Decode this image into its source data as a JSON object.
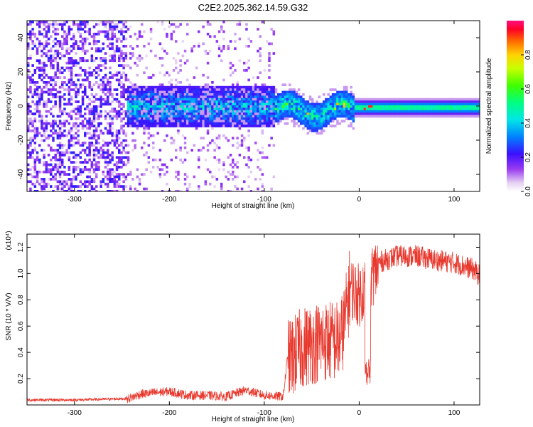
{
  "title": "C2E2.2025.362.14.59.G32",
  "chart_data": [
    {
      "type": "heatmap",
      "name": "spectrogram",
      "xlabel": "Height of straight line (km)",
      "ylabel": "Frequency (Hz)",
      "xlim": [
        -350,
        127
      ],
      "ylim": [
        -50,
        50
      ],
      "xticks": [
        -300,
        -200,
        -100,
        0,
        100
      ],
      "yticks": [
        -40,
        -20,
        0,
        20,
        40
      ],
      "colorbar": {
        "label": "Normalized spectral amplitude",
        "range": [
          0,
          1
        ],
        "ticks": [
          "0.0",
          "0.2",
          "0.4",
          "0.6",
          "0.8"
        ],
        "colormap": "rainbow (white-purple-blue-cyan-green-yellow-red-magenta)"
      },
      "regions": [
        {
          "x": [
            -350,
            -245
          ],
          "freq_half_width": 50,
          "amplitude": 0.1,
          "description": "broadband sparse noise"
        },
        {
          "x": [
            -245,
            -90
          ],
          "freq_half_width": 12,
          "amplitude": 0.25,
          "description": "dense band with scattered noise"
        },
        {
          "x": [
            -90,
            -5
          ],
          "freq_half_width": 8,
          "amplitude": 0.4,
          "description": "wavy band with hot spots"
        },
        {
          "x": [
            -5,
            127
          ],
          "freq_half_width": 4,
          "amplitude": 0.5,
          "description": "narrow steady band"
        }
      ]
    },
    {
      "type": "line",
      "name": "snr",
      "xlabel": "Height of straight line (km)",
      "ylabel": "SNR (10 * V/V)",
      "y_exponent": "(x10⁴)",
      "xlim": [
        -350,
        127
      ],
      "ylim": [
        0,
        1.3
      ],
      "xticks": [
        -300,
        -200,
        -100,
        0,
        100
      ],
      "yticks": [
        "0.2",
        "0.4",
        "0.6",
        "0.8",
        "1.0",
        "1.2"
      ],
      "color": "#e8392e",
      "x": [
        -350,
        -300,
        -245,
        -230,
        -200,
        -180,
        -160,
        -140,
        -120,
        -100,
        -80,
        -75,
        -60,
        -40,
        -20,
        -15,
        -10,
        0,
        10,
        20,
        40,
        60,
        80,
        100,
        120,
        127
      ],
      "y": [
        0.04,
        0.04,
        0.05,
        0.09,
        0.11,
        0.08,
        0.08,
        0.07,
        0.12,
        0.08,
        0.07,
        0.4,
        0.5,
        0.55,
        0.55,
        0.7,
        0.95,
        0.88,
        1.0,
        1.1,
        1.15,
        1.15,
        1.12,
        1.1,
        1.05,
        1.0
      ]
    }
  ]
}
